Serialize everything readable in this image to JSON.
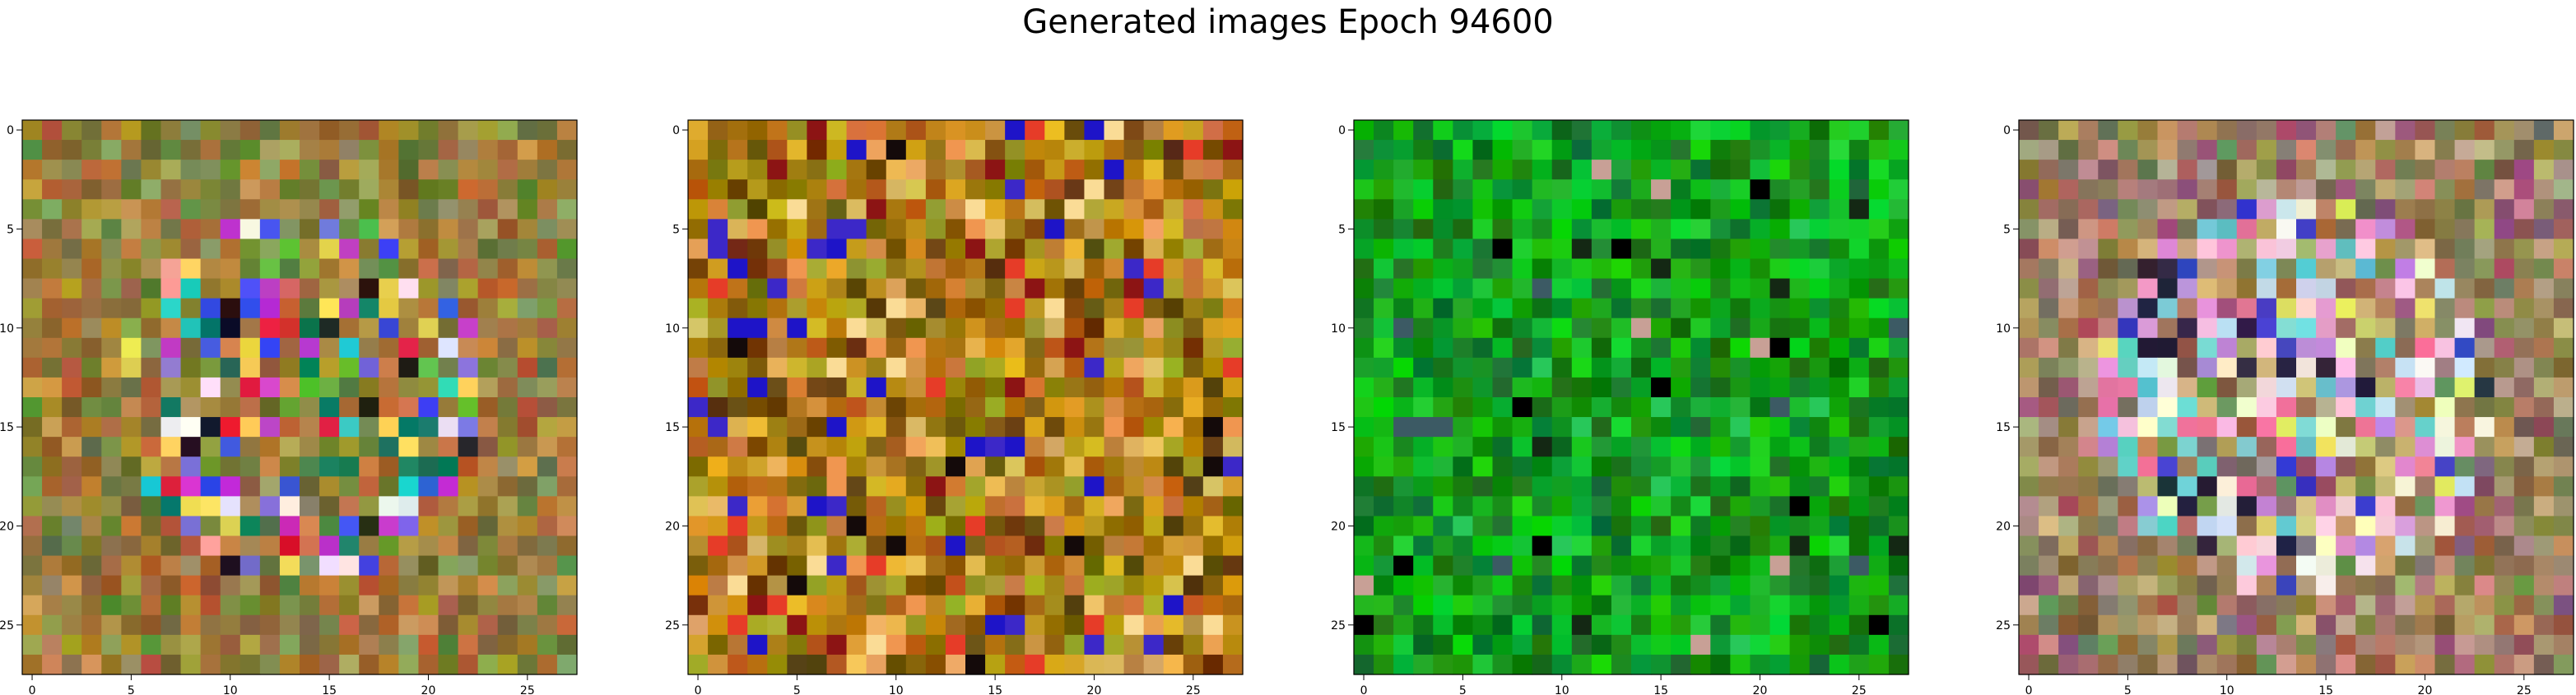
{
  "figure": {
    "title": "Generated images Epoch 94600"
  },
  "chart_data": [
    {
      "type": "heatmap",
      "palette": "warm-olive",
      "grid_size": [
        28,
        28
      ],
      "xlim": [
        -0.5,
        27.5
      ],
      "ylim": [
        27.5,
        -0.5
      ],
      "x_ticks": [
        0,
        5,
        10,
        15,
        20,
        25
      ],
      "y_ticks": [
        0,
        5,
        10,
        15,
        20,
        25
      ],
      "seed": 11
    },
    {
      "type": "heatmap",
      "palette": "amber-brown",
      "grid_size": [
        28,
        28
      ],
      "xlim": [
        -0.5,
        27.5
      ],
      "ylim": [
        27.5,
        -0.5
      ],
      "x_ticks": [
        0,
        5,
        10,
        15,
        20,
        25
      ],
      "y_ticks": [
        0,
        5,
        10,
        15,
        20,
        25
      ],
      "seed": 23
    },
    {
      "type": "heatmap",
      "palette": "green",
      "grid_size": [
        28,
        28
      ],
      "xlim": [
        -0.5,
        27.5
      ],
      "ylim": [
        27.5,
        -0.5
      ],
      "x_ticks": [
        0,
        5,
        10,
        15,
        20,
        25
      ],
      "y_ticks": [
        0,
        5,
        10,
        15,
        20,
        25
      ],
      "seed": 37
    },
    {
      "type": "heatmap",
      "palette": "pastel-mixed",
      "grid_size": [
        28,
        28
      ],
      "xlim": [
        -0.5,
        27.5
      ],
      "ylim": [
        27.5,
        -0.5
      ],
      "x_ticks": [
        0,
        5,
        10,
        15,
        20,
        25
      ],
      "y_ticks": [
        0,
        5,
        10,
        15,
        20,
        25
      ],
      "seed": 53
    }
  ]
}
